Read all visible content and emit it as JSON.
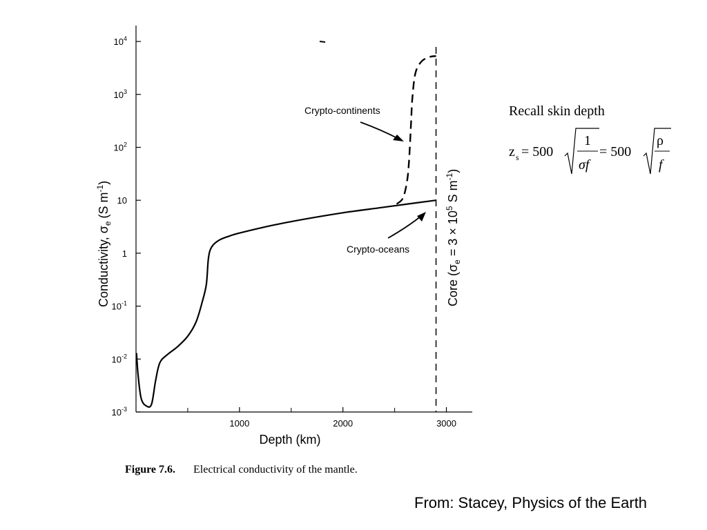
{
  "chart_data": {
    "type": "line",
    "xlabel": "Depth  (km)",
    "ylabel_parts": {
      "prefix": "Conductivity,  ",
      "sigma": "σ",
      "sub": "e",
      "units": "(S m",
      "sup": "-1",
      "close": ")"
    },
    "x_ticks": [
      1000,
      2000,
      3000
    ],
    "x_minor_ticks": [
      500,
      1500,
      2500
    ],
    "xlim": [
      0,
      3250
    ],
    "y_scale": "log",
    "ylim": [
      0.001,
      20000
    ],
    "y_tick_labels": [
      {
        "value": 0.001,
        "base": "10",
        "sup": "-3"
      },
      {
        "value": 0.01,
        "base": "10",
        "sup": "-2"
      },
      {
        "value": 0.1,
        "base": "10",
        "sup": "-1"
      },
      {
        "value": 1,
        "base": "1",
        "sup": ""
      },
      {
        "value": 10,
        "base": "10",
        "sup": ""
      },
      {
        "value": 100,
        "base": "10",
        "sup": "2"
      },
      {
        "value": 1000,
        "base": "10",
        "sup": "3"
      },
      {
        "value": 10000,
        "base": "10",
        "sup": "4"
      }
    ],
    "series": [
      {
        "name": "Crypto-oceans",
        "style": "solid",
        "points": [
          [
            5,
            0.013
          ],
          [
            20,
            0.005
          ],
          [
            50,
            0.0018
          ],
          [
            100,
            0.0013
          ],
          [
            150,
            0.0014
          ],
          [
            190,
            0.004
          ],
          [
            230,
            0.0085
          ],
          [
            300,
            0.012
          ],
          [
            400,
            0.017
          ],
          [
            500,
            0.027
          ],
          [
            580,
            0.05
          ],
          [
            640,
            0.12
          ],
          [
            680,
            0.26
          ],
          [
            700,
            0.8
          ],
          [
            730,
            1.3
          ],
          [
            800,
            1.75
          ],
          [
            900,
            2.1
          ],
          [
            1000,
            2.4
          ],
          [
            1300,
            3.3
          ],
          [
            1600,
            4.3
          ],
          [
            2000,
            5.8
          ],
          [
            2400,
            7.4
          ],
          [
            2700,
            8.9
          ],
          [
            2900,
            10
          ]
        ]
      },
      {
        "name": "Crypto-continents",
        "style": "dashed",
        "points": [
          [
            2520,
            8.5
          ],
          [
            2580,
            11
          ],
          [
            2620,
            23
          ],
          [
            2640,
            60
          ],
          [
            2660,
            330
          ],
          [
            2670,
            800
          ],
          [
            2700,
            2500
          ],
          [
            2760,
            4200
          ],
          [
            2840,
            5100
          ],
          [
            2900,
            5300
          ]
        ]
      }
    ],
    "core_line": {
      "depth": 2900
    },
    "core_label": {
      "text1": "Core  (",
      "sigma": "σ",
      "sub": "e",
      "eq": " = 3 × 10",
      "sup": "5",
      "units": " S  m",
      "sup2": "-1",
      "close": ")"
    },
    "annotations": {
      "continents": "Crypto-continents",
      "oceans": "Crypto-oceans"
    }
  },
  "caption": {
    "figure": "Figure 7.6.",
    "text": "Electrical conductivity of the mantle."
  },
  "formula": {
    "title": "Recall skin depth",
    "lhs": "z",
    "lhs_sub": "s",
    "eq1": " = 500",
    "num1": "1",
    "den1": "σf",
    "eq2": " = 500",
    "num2": "ρ",
    "den2": "f"
  },
  "source": "From: Stacey, Physics of the Earth"
}
